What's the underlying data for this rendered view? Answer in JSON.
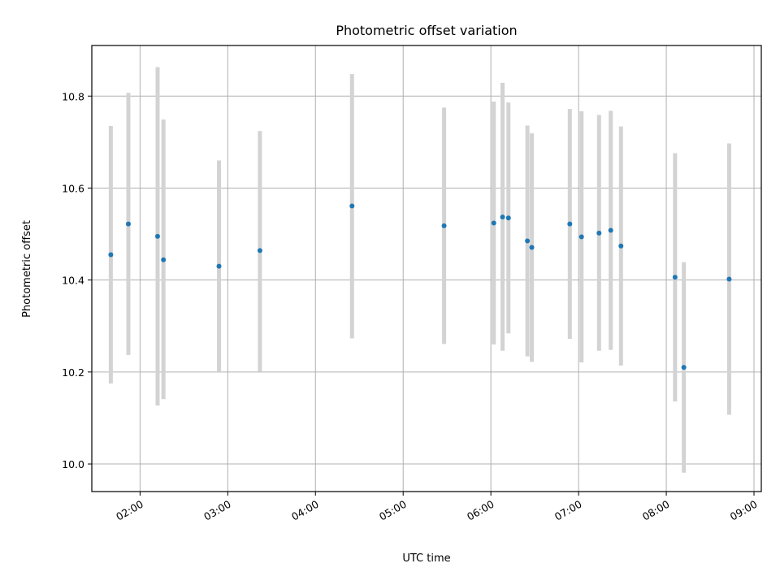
{
  "chart_data": {
    "type": "scatter",
    "title": "Photometric offset variation",
    "xlabel": "UTC time",
    "ylabel": "Photometric offset",
    "x_ticks": [
      "02:00",
      "03:00",
      "04:00",
      "05:00",
      "06:00",
      "07:00",
      "08:00",
      "09:00"
    ],
    "x_tick_values": [
      "02:00",
      "03:00",
      "04:00",
      "05:00",
      "06:00",
      "07:00",
      "08:00",
      "09:00"
    ],
    "y_ticks": [
      10.0,
      10.2,
      10.4,
      10.6,
      10.8
    ],
    "y_tick_labels": [
      "10.0",
      "10.2",
      "10.4",
      "10.6",
      "10.8"
    ],
    "xlim": [
      "01:27",
      "09:05"
    ],
    "ylim": [
      9.94,
      10.91
    ],
    "grid": true,
    "colors": {
      "point": "#1f77b4",
      "errorbar": "#d3d3d3",
      "grid": "#b0b0b0"
    },
    "points": [
      {
        "x": "01:40",
        "y": 10.455,
        "ylow": 10.175,
        "yhigh": 10.735
      },
      {
        "x": "01:52",
        "y": 10.522,
        "ylow": 10.237,
        "yhigh": 10.807
      },
      {
        "x": "02:12",
        "y": 10.495,
        "ylow": 10.127,
        "yhigh": 10.863
      },
      {
        "x": "02:16",
        "y": 10.444,
        "ylow": 10.141,
        "yhigh": 10.749
      },
      {
        "x": "02:54",
        "y": 10.43,
        "ylow": 10.2,
        "yhigh": 10.66
      },
      {
        "x": "03:22",
        "y": 10.464,
        "ylow": 10.201,
        "yhigh": 10.724
      },
      {
        "x": "04:25",
        "y": 10.561,
        "ylow": 10.273,
        "yhigh": 10.848
      },
      {
        "x": "05:28",
        "y": 10.518,
        "ylow": 10.261,
        "yhigh": 10.775
      },
      {
        "x": "06:02",
        "y": 10.524,
        "ylow": 10.26,
        "yhigh": 10.788
      },
      {
        "x": "06:08",
        "y": 10.537,
        "ylow": 10.246,
        "yhigh": 10.829
      },
      {
        "x": "06:12",
        "y": 10.535,
        "ylow": 10.284,
        "yhigh": 10.786
      },
      {
        "x": "06:25",
        "y": 10.485,
        "ylow": 10.234,
        "yhigh": 10.736
      },
      {
        "x": "06:28",
        "y": 10.471,
        "ylow": 10.222,
        "yhigh": 10.719
      },
      {
        "x": "06:54",
        "y": 10.522,
        "ylow": 10.272,
        "yhigh": 10.772
      },
      {
        "x": "07:02",
        "y": 10.494,
        "ylow": 10.221,
        "yhigh": 10.767
      },
      {
        "x": "07:14",
        "y": 10.502,
        "ylow": 10.246,
        "yhigh": 10.759
      },
      {
        "x": "07:22",
        "y": 10.508,
        "ylow": 10.248,
        "yhigh": 10.768
      },
      {
        "x": "07:29",
        "y": 10.474,
        "ylow": 10.214,
        "yhigh": 10.734
      },
      {
        "x": "08:06",
        "y": 10.406,
        "ylow": 10.136,
        "yhigh": 10.676
      },
      {
        "x": "08:12",
        "y": 10.21,
        "ylow": 9.981,
        "yhigh": 10.439
      },
      {
        "x": "08:43",
        "y": 10.402,
        "ylow": 10.107,
        "yhigh": 10.697
      }
    ]
  }
}
